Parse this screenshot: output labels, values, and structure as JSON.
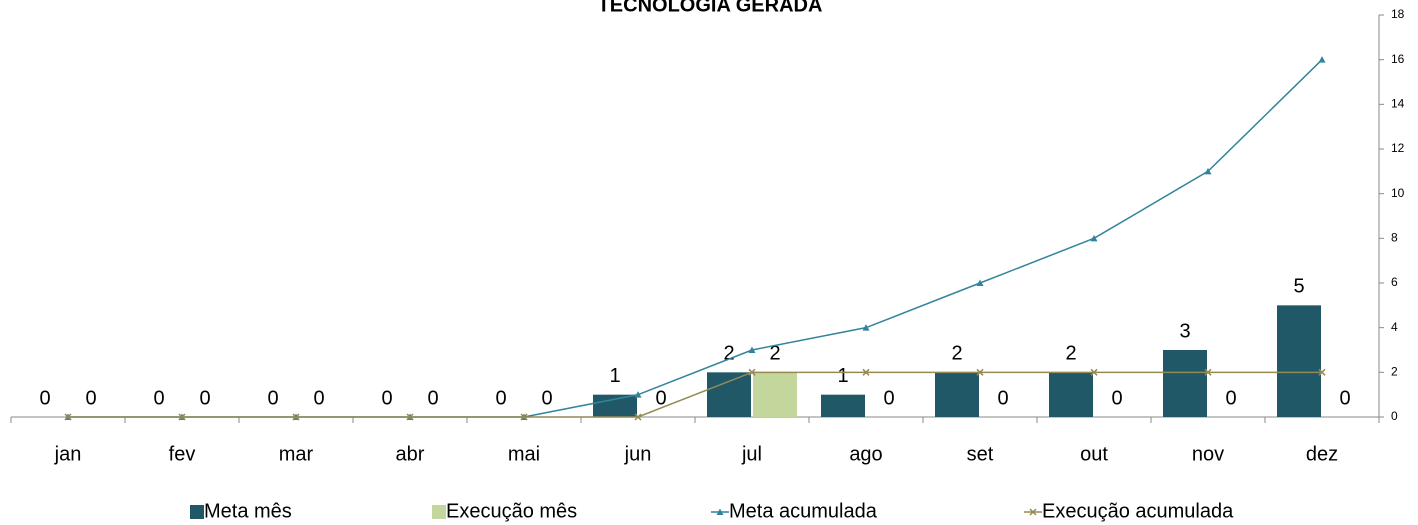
{
  "chart_data": {
    "type": "bar_line",
    "title": "TECNOLOGIA GERADA",
    "categories": [
      "jan",
      "fev",
      "mar",
      "abr",
      "mai",
      "jun",
      "jul",
      "ago",
      "set",
      "out",
      "nov",
      "dez"
    ],
    "series": [
      {
        "name": "Meta mês",
        "kind": "bar",
        "color": "#215868",
        "values": [
          0,
          0,
          0,
          0,
          0,
          1,
          2,
          1,
          2,
          2,
          3,
          5
        ]
      },
      {
        "name": "Execução mês",
        "kind": "bar",
        "color": "#c3d69b",
        "values": [
          0,
          0,
          0,
          0,
          0,
          0,
          2,
          0,
          0,
          0,
          0,
          0
        ]
      },
      {
        "name": "Meta acumulada",
        "kind": "line",
        "marker": "triangle",
        "color": "#31849b",
        "values": [
          0,
          0,
          0,
          0,
          0,
          1,
          3,
          4,
          6,
          8,
          11,
          16
        ]
      },
      {
        "name": "Execução acumulada",
        "kind": "line",
        "marker": "x",
        "color": "#948a54",
        "values": [
          0,
          0,
          0,
          0,
          0,
          0,
          2,
          2,
          2,
          2,
          2,
          2
        ]
      }
    ],
    "ylim": [
      0,
      18
    ],
    "yticks": [
      0,
      2,
      4,
      6,
      8,
      10,
      12,
      14,
      16,
      18
    ],
    "y_axis_side": "right",
    "legend": "bottom"
  }
}
